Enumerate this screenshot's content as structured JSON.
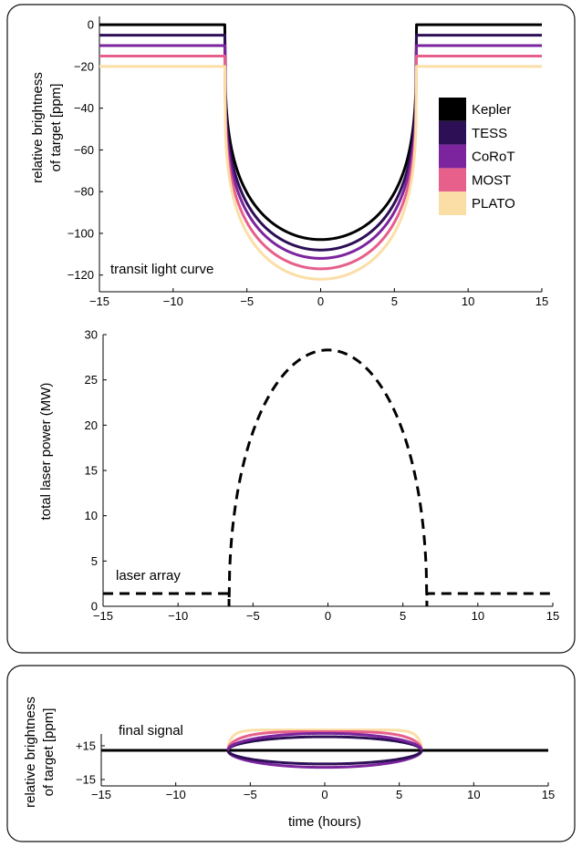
{
  "chart_data": [
    {
      "type": "line",
      "panel": "transit light curve",
      "annotation": "transit light curve",
      "ylabel_lines": [
        "relative brightness",
        "of target [ppm]"
      ],
      "xlim": [
        -15,
        15
      ],
      "ylim": [
        -128,
        4
      ],
      "xticks": [
        -15,
        -10,
        -5,
        0,
        5,
        10,
        15
      ],
      "yticks": [
        0,
        -20,
        -40,
        -60,
        -80,
        -100,
        -120
      ],
      "xtick_labels": [
        "−15",
        "−10",
        "−5",
        "0",
        "5",
        "10",
        "15"
      ],
      "ytick_labels": [
        "0",
        "−20",
        "−40",
        "−60",
        "−80",
        "−100",
        "−120"
      ],
      "transit_half_width_hours": 6.5,
      "legend_position": "right, inside",
      "series": [
        {
          "name": "Kepler",
          "color": "#000000",
          "offset": 0,
          "depth_center": -103
        },
        {
          "name": "TESS",
          "color": "#2d0f55",
          "offset": -5,
          "depth_center": -108
        },
        {
          "name": "CoRoT",
          "color": "#7b249e",
          "offset": -10,
          "depth_center": -112
        },
        {
          "name": "MOST",
          "color": "#e75f8b",
          "offset": -15,
          "depth_center": -117
        },
        {
          "name": "PLATO",
          "color": "#fbdea6",
          "offset": -20,
          "depth_center": -122
        }
      ]
    },
    {
      "type": "line",
      "panel": "laser array",
      "annotation": "laser array",
      "ylabel": "total laser power (MW)",
      "xlim": [
        -15,
        15
      ],
      "ylim": [
        0,
        30
      ],
      "xticks": [
        -15,
        -10,
        -5,
        0,
        5,
        10,
        15
      ],
      "yticks": [
        0,
        5,
        10,
        15,
        20,
        25,
        30
      ],
      "xtick_labels": [
        "−15",
        "−10",
        "−5",
        "0",
        "5",
        "10",
        "15"
      ],
      "ytick_labels": [
        "0",
        "5",
        "10",
        "15",
        "20",
        "25",
        "30"
      ],
      "series": [
        {
          "name": "laser power",
          "color": "#000000",
          "style": "dashed",
          "peak": 28.3,
          "on_interval": [
            -6.6,
            6.6
          ]
        }
      ]
    },
    {
      "type": "line",
      "panel": "final signal",
      "annotation": "final signal",
      "ylabel_lines": [
        "relative brightness",
        "of target [ppm]"
      ],
      "xlabel": "time (hours)",
      "xlim": [
        -15,
        15
      ],
      "ylim": [
        -17,
        17
      ],
      "xticks": [
        -15,
        -10,
        -5,
        0,
        5,
        10,
        15
      ],
      "yticks": [
        15,
        -15
      ],
      "xtick_labels": [
        "−15",
        "−10",
        "−5",
        "0",
        "5",
        "10",
        "15"
      ],
      "ytick_labels": [
        "+15",
        "−15"
      ],
      "series": [
        {
          "name": "Kepler",
          "color": "#000000",
          "level": 0
        },
        {
          "name": "TESS",
          "color": "#2d0f55",
          "level": 8
        },
        {
          "name": "CoRoT",
          "color": "#7b249e",
          "level": -10
        },
        {
          "name": "MOST",
          "color": "#e75f8b",
          "level": 11
        },
        {
          "name": "PLATO",
          "color": "#fbdea6",
          "level": 12
        }
      ]
    }
  ]
}
